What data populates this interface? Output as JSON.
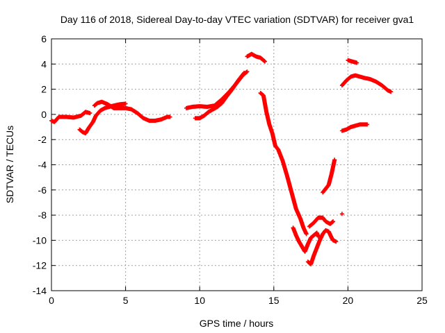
{
  "chart_data": {
    "type": "scatter",
    "title": "Day 116 of 2018, Sidereal Day-to-day VTEC variation (SDTVAR) for receiver gva1",
    "xlabel": "GPS time / hours",
    "ylabel": "SDTVAR / TECUs",
    "xlim": [
      0,
      25
    ],
    "ylim": [
      -14,
      6
    ],
    "xticks": [
      "0",
      "5",
      "10",
      "15",
      "20",
      "25"
    ],
    "yticks": [
      "-14",
      "-12",
      "-10",
      "-8",
      "-6",
      "-4",
      "-2",
      "0",
      "2",
      "4",
      "6"
    ],
    "grid": true,
    "marker": "+",
    "color": "#ff0000",
    "series": [
      {
        "name": "s1",
        "points": [
          [
            0.0,
            -0.5
          ],
          [
            0.2,
            -0.6
          ],
          [
            0.5,
            -0.2
          ],
          [
            1.0,
            -0.2
          ],
          [
            1.5,
            -0.25
          ],
          [
            2.0,
            -0.1
          ],
          [
            2.3,
            0.2
          ],
          [
            2.6,
            0.1
          ]
        ]
      },
      {
        "name": "s2",
        "points": [
          [
            1.9,
            -1.2
          ],
          [
            2.1,
            -1.4
          ],
          [
            2.3,
            -1.5
          ],
          [
            2.5,
            -1.1
          ],
          [
            2.8,
            -0.6
          ],
          [
            3.0,
            -0.1
          ],
          [
            3.3,
            0.3
          ],
          [
            3.6,
            0.5
          ],
          [
            3.9,
            0.6
          ],
          [
            4.2,
            0.7
          ],
          [
            4.6,
            0.8
          ],
          [
            5.0,
            0.85
          ]
        ]
      },
      {
        "name": "s3",
        "points": [
          [
            2.9,
            0.7
          ],
          [
            3.1,
            0.9
          ],
          [
            3.4,
            1.0
          ],
          [
            3.8,
            0.8
          ],
          [
            4.2,
            0.5
          ],
          [
            4.6,
            0.5
          ],
          [
            5.0,
            0.5
          ],
          [
            5.4,
            0.4
          ],
          [
            5.8,
            0.1
          ],
          [
            6.2,
            -0.3
          ],
          [
            6.6,
            -0.5
          ],
          [
            7.0,
            -0.5
          ],
          [
            7.4,
            -0.4
          ],
          [
            7.8,
            -0.2
          ],
          [
            8.0,
            -0.2
          ]
        ]
      },
      {
        "name": "s4",
        "points": [
          [
            9.1,
            0.5
          ],
          [
            9.5,
            0.6
          ],
          [
            10.0,
            0.65
          ],
          [
            10.5,
            0.6
          ],
          [
            11.0,
            0.7
          ],
          [
            11.5,
            1.2
          ],
          [
            12.0,
            1.8
          ],
          [
            12.5,
            2.5
          ],
          [
            12.9,
            3.1
          ],
          [
            13.2,
            3.4
          ]
        ]
      },
      {
        "name": "s5",
        "points": [
          [
            9.7,
            -0.3
          ],
          [
            10.0,
            -0.3
          ],
          [
            10.3,
            -0.1
          ],
          [
            10.6,
            0.2
          ],
          [
            10.9,
            0.4
          ],
          [
            11.2,
            0.6
          ],
          [
            11.5,
            0.9
          ],
          [
            11.8,
            1.4
          ],
          [
            12.2,
            2.0
          ],
          [
            12.6,
            2.7
          ],
          [
            13.0,
            3.3
          ]
        ]
      },
      {
        "name": "s6",
        "points": [
          [
            13.2,
            4.6
          ],
          [
            13.5,
            4.8
          ],
          [
            13.8,
            4.6
          ],
          [
            14.1,
            4.5
          ],
          [
            14.4,
            4.2
          ]
        ]
      },
      {
        "name": "s7",
        "points": [
          [
            14.1,
            1.7
          ],
          [
            14.3,
            1.5
          ],
          [
            14.5,
            0.2
          ],
          [
            14.7,
            -0.8
          ],
          [
            14.9,
            -1.5
          ],
          [
            15.1,
            -2.5
          ],
          [
            15.3,
            -2.8
          ],
          [
            15.6,
            -3.7
          ],
          [
            15.9,
            -4.9
          ],
          [
            16.2,
            -6.2
          ],
          [
            16.5,
            -7.5
          ],
          [
            16.8,
            -8.3
          ],
          [
            17.0,
            -9.0
          ],
          [
            17.2,
            -9.5
          ]
        ]
      },
      {
        "name": "s8",
        "points": [
          [
            16.3,
            -9.0
          ],
          [
            16.5,
            -9.6
          ],
          [
            16.7,
            -10.1
          ],
          [
            16.9,
            -10.5
          ],
          [
            17.1,
            -10.9
          ],
          [
            17.3,
            -10.3
          ],
          [
            17.5,
            -9.8
          ],
          [
            17.7,
            -9.6
          ],
          [
            17.9,
            -9.4
          ],
          [
            18.0,
            -9.7
          ]
        ]
      },
      {
        "name": "s9",
        "points": [
          [
            17.3,
            -11.7
          ],
          [
            17.5,
            -11.9
          ],
          [
            17.7,
            -11.2
          ],
          [
            17.9,
            -10.6
          ],
          [
            18.1,
            -10.0
          ],
          [
            18.3,
            -9.5
          ],
          [
            18.5,
            -9.2
          ],
          [
            18.7,
            -9.3
          ],
          [
            18.9,
            -9.8
          ],
          [
            19.0,
            -10.0
          ],
          [
            19.2,
            -10.1
          ]
        ]
      },
      {
        "name": "s10",
        "points": [
          [
            17.4,
            -8.9
          ],
          [
            17.7,
            -8.6
          ],
          [
            18.0,
            -8.2
          ],
          [
            18.3,
            -8.2
          ],
          [
            18.5,
            -8.5
          ],
          [
            18.8,
            -8.7
          ],
          [
            19.0,
            -8.5
          ]
        ]
      },
      {
        "name": "s11",
        "points": [
          [
            18.3,
            -6.2
          ],
          [
            18.5,
            -5.9
          ],
          [
            18.7,
            -5.6
          ],
          [
            18.9,
            -4.7
          ],
          [
            19.1,
            -3.6
          ]
        ]
      },
      {
        "name": "s12",
        "points": [
          [
            19.6,
            -7.9
          ]
        ]
      },
      {
        "name": "s13",
        "points": [
          [
            19.6,
            -1.3
          ],
          [
            19.9,
            -1.2
          ],
          [
            20.2,
            -1.0
          ],
          [
            20.5,
            -0.9
          ],
          [
            20.8,
            -0.8
          ],
          [
            21.1,
            -0.8
          ],
          [
            21.3,
            -0.8
          ]
        ]
      },
      {
        "name": "s14",
        "points": [
          [
            20.0,
            4.3
          ],
          [
            20.3,
            4.2
          ],
          [
            20.6,
            4.1
          ]
        ]
      },
      {
        "name": "s15",
        "points": [
          [
            19.6,
            2.3
          ],
          [
            19.9,
            2.7
          ],
          [
            20.2,
            3.0
          ],
          [
            20.5,
            3.1
          ],
          [
            20.8,
            3.0
          ],
          [
            21.1,
            2.9
          ],
          [
            21.5,
            2.8
          ],
          [
            21.9,
            2.6
          ],
          [
            22.3,
            2.3
          ],
          [
            22.7,
            1.9
          ],
          [
            22.9,
            1.8
          ]
        ]
      }
    ]
  }
}
